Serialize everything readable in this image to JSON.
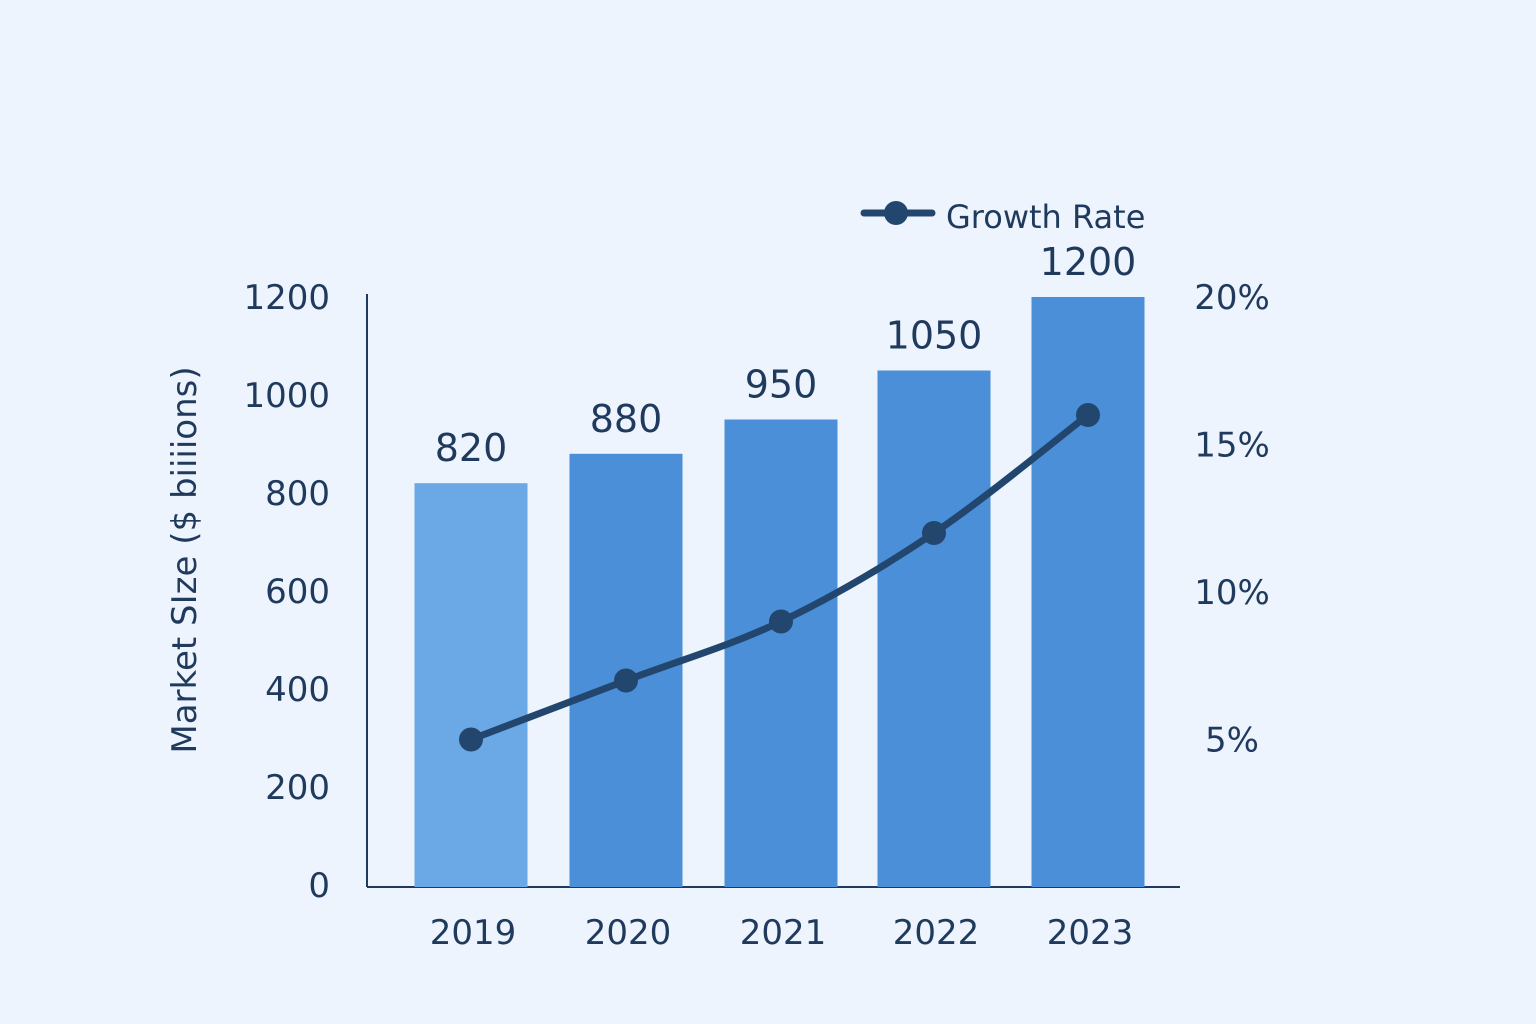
{
  "chart_data": {
    "type": "bar",
    "title": "",
    "categories": [
      "2019",
      "2020",
      "2021",
      "2022",
      "2023"
    ],
    "series": [
      {
        "type": "bar",
        "axis": "left",
        "values": [
          820,
          880,
          950,
          1050,
          1200
        ],
        "data_labels": [
          "820",
          "880",
          "950",
          "1050",
          "1200"
        ]
      },
      {
        "name": "Growth Rate",
        "type": "line",
        "axis": "right",
        "values": [
          5,
          7,
          9,
          12,
          16
        ]
      }
    ],
    "ylabel": "Market SIze ($ biiiions)",
    "y_axis_left": {
      "range": [
        0,
        1200
      ],
      "ticks": [
        "0",
        "200",
        "400",
        "600",
        "800",
        "1000",
        "1200"
      ]
    },
    "y_axis_right": {
      "range": [
        0,
        20
      ],
      "ticks": [
        "5%",
        "10%",
        "15%",
        "20%"
      ]
    },
    "grid": false,
    "legend": {
      "position": "top-right",
      "entries": [
        "Growth Rate"
      ]
    },
    "colors": {
      "background": "#EDF4FD",
      "bar_first": "#6AA8E6",
      "bar": "#4A8FD7",
      "line": "#23466F",
      "text": "#1F3A5C"
    }
  }
}
